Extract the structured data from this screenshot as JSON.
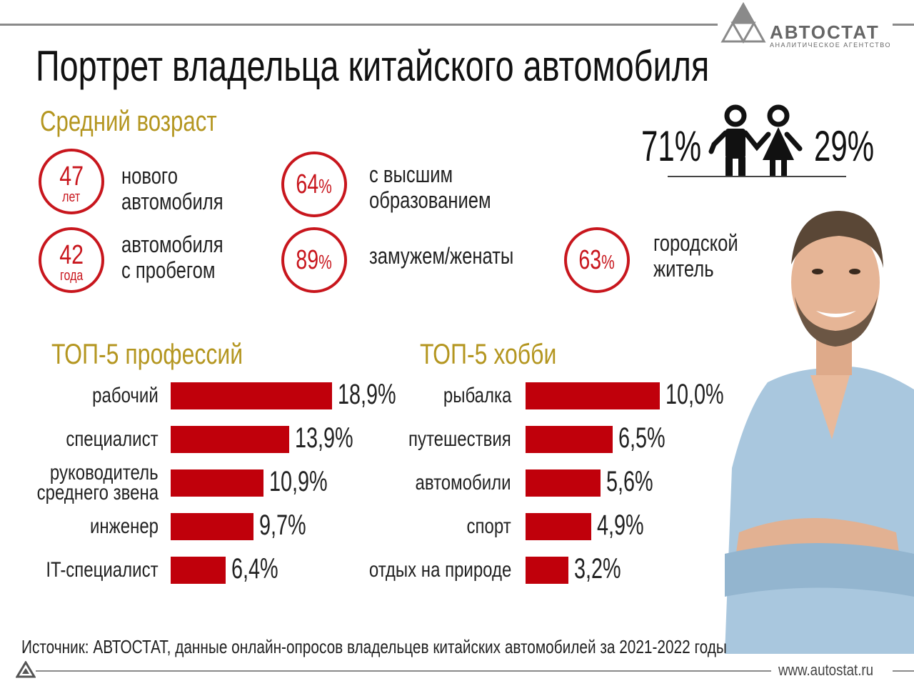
{
  "header": {
    "title": "Портрет владельца китайского автомобиля",
    "logo_brand": "АВТОСТАТ",
    "logo_subtitle": "АНАЛИТИЧЕСКОЕ АГЕНТСТВО"
  },
  "age": {
    "heading": "Средний возраст",
    "new_car": {
      "value": "47",
      "unit": "лет",
      "label_line1": "нового",
      "label_line2": "автомобиля"
    },
    "used_car": {
      "value": "42",
      "unit": "года",
      "label_line1": "автомобиля",
      "label_line2": "с пробегом"
    }
  },
  "stats": {
    "education": {
      "value": "64",
      "unit": "%",
      "label_line1": "с высшим",
      "label_line2": "образованием"
    },
    "married": {
      "value": "89",
      "unit": "%",
      "label": "замужем/женаты"
    },
    "urban": {
      "value": "63",
      "unit": "%",
      "label_line1": "городской",
      "label_line2": "житель"
    }
  },
  "gender": {
    "male": "71%",
    "female": "29%",
    "icon": "man-woman-icon"
  },
  "chart_data": [
    {
      "type": "bar",
      "orientation": "horizontal",
      "title": "ТОП-5 профессий",
      "categories": [
        "рабочий",
        "специалист",
        "руководитель среднего звена",
        "инженер",
        "IT-специалист"
      ],
      "category_lines": [
        [
          "рабочий"
        ],
        [
          "специалист"
        ],
        [
          "руководитель",
          "среднего звена"
        ],
        [
          "инженер"
        ],
        [
          "IT-специалист"
        ]
      ],
      "values": [
        18.9,
        13.9,
        10.9,
        9.7,
        6.4
      ],
      "value_labels": [
        "18,9%",
        "13,9%",
        "10,9%",
        "9,7%",
        "6,4%"
      ],
      "xlim": [
        0,
        18.9
      ],
      "grid": false,
      "color": "#c0000b"
    },
    {
      "type": "bar",
      "orientation": "horizontal",
      "title": "ТОП-5 хобби",
      "categories": [
        "рыбалка",
        "путешествия",
        "автомобили",
        "спорт",
        "отдых на природе"
      ],
      "category_lines": [
        [
          "рыбалка"
        ],
        [
          "путешествия"
        ],
        [
          "автомобили"
        ],
        [
          "спорт"
        ],
        [
          "отдых на природе"
        ]
      ],
      "values": [
        10.0,
        6.5,
        5.6,
        4.9,
        3.2
      ],
      "value_labels": [
        "10,0%",
        "6,5%",
        "5,6%",
        "4,9%",
        "3,2%"
      ],
      "xlim": [
        0,
        10.0
      ],
      "grid": false,
      "color": "#c0000b"
    }
  ],
  "footer": {
    "source": "Источник: АВТОСТАТ, данные онлайн-опросов владельцев китайских автомобилей за 2021-2022 годы",
    "website": "www.autostat.ru"
  },
  "colors": {
    "accent_red": "#c8161d",
    "bar_red": "#c0000b",
    "heading_gold": "#b49620"
  }
}
